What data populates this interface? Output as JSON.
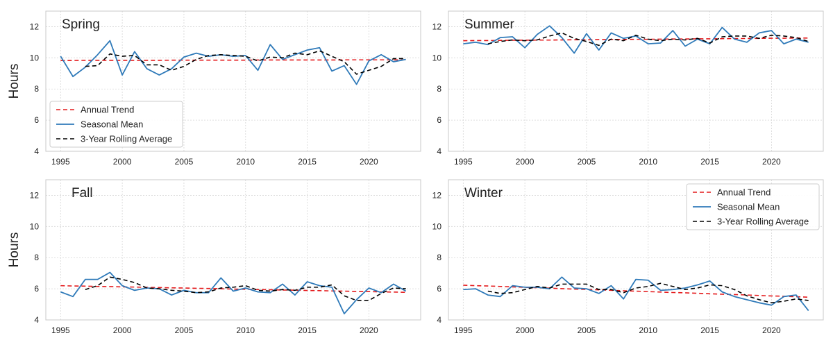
{
  "figure": {
    "ylabel": "Hours"
  },
  "legend_labels": {
    "trend": "Annual Trend",
    "mean": "Seasonal Mean",
    "rolling": "3-Year Rolling Average"
  },
  "colors": {
    "trend": "#e41a1c",
    "mean": "#2f7ab9",
    "rolling": "#000000",
    "grid": "#d6d6d6",
    "frame": "#c8c8c8",
    "text": "#222222"
  },
  "chart_data": [
    {
      "type": "line",
      "title": "Spring",
      "xlim": [
        1993.8,
        2024.2
      ],
      "ylim": [
        4,
        13
      ],
      "xticks": [
        1995,
        2000,
        2005,
        2010,
        2015,
        2020
      ],
      "yticks": [
        4,
        6,
        8,
        10,
        12
      ],
      "show_ylabel": true,
      "legend": "lower-left",
      "grid": true,
      "x": [
        1995,
        1996,
        1997,
        1998,
        1999,
        2000,
        2001,
        2002,
        2003,
        2004,
        2005,
        2006,
        2007,
        2008,
        2009,
        2010,
        2011,
        2012,
        2013,
        2014,
        2015,
        2016,
        2017,
        2018,
        2019,
        2020,
        2021,
        2022,
        2023
      ],
      "series": [
        {
          "name": "Seasonal Mean",
          "key": "mean",
          "values": [
            10.1,
            8.8,
            9.4,
            10.2,
            11.1,
            8.9,
            10.4,
            9.3,
            8.9,
            9.3,
            10.05,
            10.3,
            10.1,
            10.2,
            10.1,
            10.15,
            9.2,
            10.85,
            9.9,
            10.2,
            10.5,
            10.65,
            9.15,
            9.5,
            8.3,
            9.8,
            10.2,
            9.75,
            9.9
          ]
        },
        {
          "name": "3-Year Rolling Average",
          "key": "rolling",
          "values": [
            null,
            null,
            9.45,
            9.5,
            10.25,
            10.1,
            10.15,
            9.55,
            9.55,
            9.2,
            9.45,
            9.9,
            10.15,
            10.2,
            10.15,
            10.1,
            9.8,
            10.05,
            10.0,
            10.3,
            10.2,
            10.45,
            10.1,
            9.75,
            8.95,
            9.2,
            9.45,
            9.95,
            9.95
          ]
        },
        {
          "name": "Annual Trend",
          "key": "trend",
          "values": [
            9.83,
            9.83,
            9.84,
            9.84,
            9.84,
            9.84,
            9.84,
            9.84,
            9.84,
            9.85,
            9.85,
            9.85,
            9.85,
            9.85,
            9.85,
            9.85,
            9.86,
            9.86,
            9.86,
            9.86,
            9.86,
            9.86,
            9.86,
            9.87,
            9.87,
            9.87,
            9.87,
            9.87,
            9.87
          ]
        }
      ]
    },
    {
      "type": "line",
      "title": "Summer",
      "xlim": [
        1993.8,
        2024.2
      ],
      "ylim": [
        4,
        13
      ],
      "xticks": [
        1995,
        2000,
        2005,
        2010,
        2015,
        2020
      ],
      "yticks": [
        4,
        6,
        8,
        10,
        12
      ],
      "show_ylabel": false,
      "legend": "none",
      "grid": true,
      "x": [
        1995,
        1996,
        1997,
        1998,
        1999,
        2000,
        2001,
        2002,
        2003,
        2004,
        2005,
        2006,
        2007,
        2008,
        2009,
        2010,
        2011,
        2012,
        2013,
        2014,
        2015,
        2016,
        2017,
        2018,
        2019,
        2020,
        2021,
        2022,
        2023
      ],
      "series": [
        {
          "name": "Seasonal Mean",
          "key": "mean",
          "values": [
            10.9,
            11.0,
            10.85,
            11.3,
            11.35,
            10.65,
            11.5,
            12.05,
            11.3,
            10.3,
            11.55,
            10.5,
            11.6,
            11.25,
            11.4,
            10.9,
            10.95,
            11.75,
            10.75,
            11.2,
            10.9,
            11.95,
            11.2,
            11.0,
            11.6,
            11.75,
            10.9,
            11.2,
            11.0
          ]
        },
        {
          "name": "3-Year Rolling Average",
          "key": "rolling",
          "values": [
            null,
            null,
            10.9,
            11.05,
            11.15,
            11.1,
            11.15,
            11.4,
            11.6,
            11.25,
            11.05,
            10.8,
            11.2,
            11.1,
            11.45,
            11.2,
            11.1,
            11.2,
            11.15,
            11.25,
            10.95,
            11.35,
            11.4,
            11.4,
            11.25,
            11.45,
            11.4,
            11.3,
            11.05
          ]
        },
        {
          "name": "Annual Trend",
          "key": "trend",
          "values": [
            11.1,
            11.11,
            11.11,
            11.12,
            11.13,
            11.13,
            11.14,
            11.14,
            11.15,
            11.16,
            11.16,
            11.17,
            11.18,
            11.18,
            11.19,
            11.19,
            11.2,
            11.21,
            11.21,
            11.22,
            11.22,
            11.23,
            11.24,
            11.24,
            11.25,
            11.26,
            11.26,
            11.27,
            11.27
          ]
        }
      ]
    },
    {
      "type": "line",
      "title": "Fall",
      "xlim": [
        1993.8,
        2024.2
      ],
      "ylim": [
        4,
        13
      ],
      "xticks": [
        1995,
        2000,
        2005,
        2010,
        2015,
        2020
      ],
      "yticks": [
        4,
        6,
        8,
        10,
        12
      ],
      "show_ylabel": true,
      "legend": "none",
      "grid": true,
      "x": [
        1995,
        1996,
        1997,
        1998,
        1999,
        2000,
        2001,
        2002,
        2003,
        2004,
        2005,
        2006,
        2007,
        2008,
        2009,
        2010,
        2011,
        2012,
        2013,
        2014,
        2015,
        2016,
        2017,
        2018,
        2019,
        2020,
        2021,
        2022,
        2023
      ],
      "series": [
        {
          "name": "Seasonal Mean",
          "key": "mean",
          "values": [
            5.8,
            5.5,
            6.6,
            6.6,
            7.05,
            6.2,
            5.9,
            6.05,
            6.0,
            5.6,
            5.9,
            5.75,
            5.75,
            6.7,
            5.85,
            6.05,
            5.8,
            5.75,
            6.3,
            5.6,
            6.45,
            6.2,
            6.1,
            4.4,
            5.3,
            6.05,
            5.75,
            6.3,
            5.85
          ]
        },
        {
          "name": "3-Year Rolling Average",
          "key": "rolling",
          "values": [
            null,
            null,
            5.95,
            6.2,
            6.75,
            6.6,
            6.4,
            6.05,
            6.0,
            5.9,
            5.85,
            5.75,
            5.8,
            6.05,
            6.1,
            6.2,
            5.9,
            5.85,
            5.95,
            5.9,
            6.1,
            6.1,
            6.25,
            5.55,
            5.25,
            5.25,
            5.7,
            6.05,
            6.0
          ]
        },
        {
          "name": "Annual Trend",
          "key": "trend",
          "values": [
            6.2,
            6.18,
            6.17,
            6.15,
            6.14,
            6.12,
            6.11,
            6.09,
            6.08,
            6.06,
            6.05,
            6.03,
            6.02,
            6.0,
            5.98,
            5.97,
            5.95,
            5.94,
            5.92,
            5.91,
            5.89,
            5.88,
            5.86,
            5.85,
            5.83,
            5.82,
            5.8,
            5.79,
            5.77
          ]
        }
      ]
    },
    {
      "type": "line",
      "title": "Winter",
      "xlim": [
        1993.8,
        2024.2
      ],
      "ylim": [
        4,
        13
      ],
      "xticks": [
        1995,
        2000,
        2005,
        2010,
        2015,
        2020
      ],
      "yticks": [
        4,
        6,
        8,
        10,
        12
      ],
      "show_ylabel": false,
      "legend": "upper-right",
      "grid": true,
      "x": [
        1995,
        1996,
        1997,
        1998,
        1999,
        2000,
        2001,
        2002,
        2003,
        2004,
        2005,
        2006,
        2007,
        2008,
        2009,
        2010,
        2011,
        2012,
        2013,
        2014,
        2015,
        2016,
        2017,
        2018,
        2019,
        2020,
        2021,
        2022,
        2023
      ],
      "series": [
        {
          "name": "Seasonal Mean",
          "key": "mean",
          "values": [
            5.95,
            6.0,
            5.6,
            5.5,
            6.2,
            6.1,
            6.1,
            6.0,
            6.75,
            6.05,
            6.0,
            5.7,
            6.2,
            5.35,
            6.6,
            6.55,
            5.9,
            5.95,
            6.05,
            6.25,
            6.5,
            5.8,
            5.5,
            5.3,
            5.1,
            4.95,
            5.5,
            5.6,
            4.6
          ]
        },
        {
          "name": "3-Year Rolling Average",
          "key": "rolling",
          "values": [
            null,
            null,
            5.85,
            5.7,
            5.75,
            5.95,
            6.15,
            6.05,
            6.3,
            6.3,
            6.3,
            5.95,
            5.95,
            5.75,
            6.05,
            6.15,
            6.35,
            6.15,
            5.95,
            6.05,
            6.25,
            6.2,
            5.95,
            5.55,
            5.3,
            5.1,
            5.2,
            5.35,
            5.25
          ]
        },
        {
          "name": "Annual Trend",
          "key": "trend",
          "values": [
            6.23,
            6.2,
            6.18,
            6.15,
            6.12,
            6.09,
            6.07,
            6.04,
            6.01,
            5.98,
            5.96,
            5.93,
            5.9,
            5.87,
            5.85,
            5.82,
            5.79,
            5.76,
            5.74,
            5.71,
            5.68,
            5.65,
            5.63,
            5.6,
            5.57,
            5.54,
            5.52,
            5.49,
            5.46
          ]
        }
      ]
    }
  ]
}
